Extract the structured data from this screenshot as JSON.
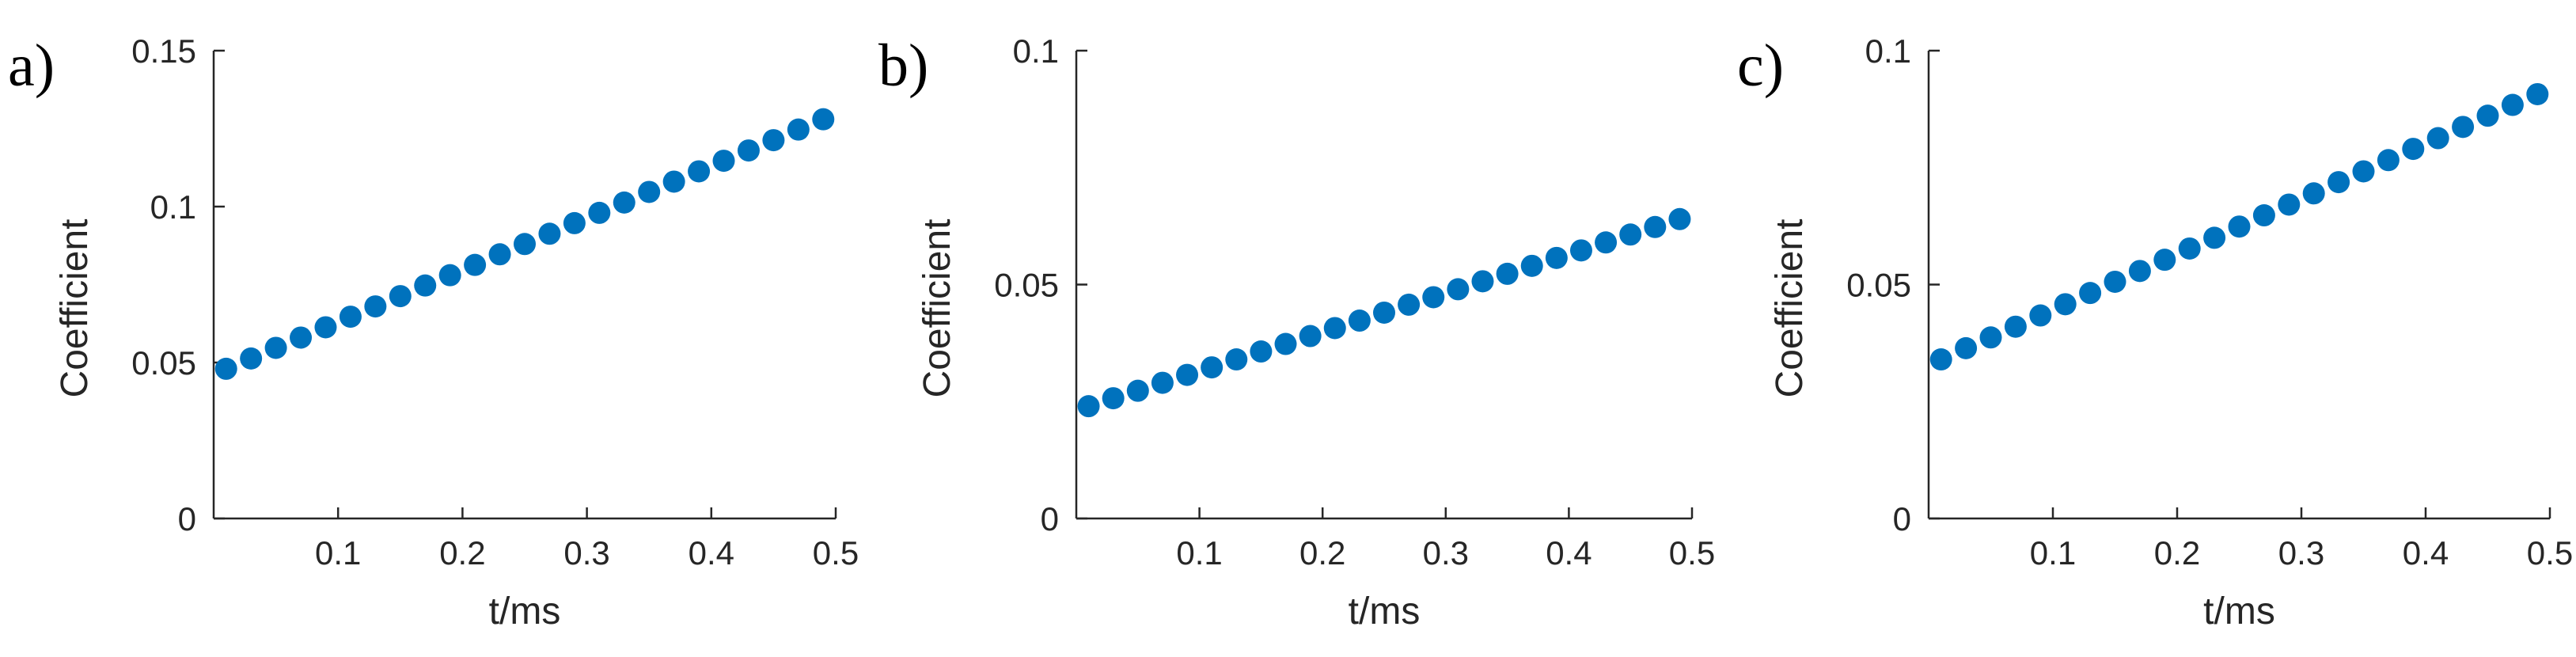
{
  "style": {
    "marker_color": "#0072BD",
    "axis_color": "#262626"
  },
  "chart_data": [
    {
      "type": "scatter",
      "panel_label": "a)",
      "xlabel": "t/ms",
      "ylabel": "Coefficient",
      "xlim": [
        0,
        0.5
      ],
      "ylim": [
        0,
        0.15
      ],
      "xticks": [
        0.1,
        0.2,
        0.3,
        0.4,
        0.5
      ],
      "xtick_labels": [
        "0.1",
        "0.2",
        "0.3",
        "0.4",
        "0.5"
      ],
      "yticks": [
        0,
        0.05,
        0.1,
        0.15
      ],
      "ytick_labels": [
        "0",
        "0.05",
        "0.1",
        "0.15"
      ],
      "grid": false,
      "series": [
        {
          "x": [
            0.01,
            0.03,
            0.05,
            0.07,
            0.09,
            0.11,
            0.13,
            0.15,
            0.17,
            0.19,
            0.21,
            0.23,
            0.25,
            0.27,
            0.29,
            0.31,
            0.33,
            0.35,
            0.37,
            0.39,
            0.41,
            0.43,
            0.45,
            0.47,
            0.49
          ],
          "y": [
            0.048,
            0.0513,
            0.0547,
            0.058,
            0.0613,
            0.0647,
            0.068,
            0.0713,
            0.0747,
            0.078,
            0.0813,
            0.0847,
            0.088,
            0.0913,
            0.0947,
            0.098,
            0.1013,
            0.1047,
            0.108,
            0.1113,
            0.1147,
            0.118,
            0.1213,
            0.1247,
            0.128
          ]
        }
      ]
    },
    {
      "type": "scatter",
      "panel_label": "b)",
      "xlabel": "t/ms",
      "ylabel": "Coefficient",
      "xlim": [
        0,
        0.5
      ],
      "ylim": [
        0,
        0.1
      ],
      "xticks": [
        0.1,
        0.2,
        0.3,
        0.4,
        0.5
      ],
      "xtick_labels": [
        "0.1",
        "0.2",
        "0.3",
        "0.4",
        "0.5"
      ],
      "yticks": [
        0,
        0.05,
        0.1
      ],
      "ytick_labels": [
        "0",
        "0.05",
        "0.1"
      ],
      "grid": false,
      "series": [
        {
          "x": [
            0.01,
            0.03,
            0.05,
            0.07,
            0.09,
            0.11,
            0.13,
            0.15,
            0.17,
            0.19,
            0.21,
            0.23,
            0.25,
            0.27,
            0.29,
            0.31,
            0.33,
            0.35,
            0.37,
            0.39,
            0.41,
            0.43,
            0.45,
            0.47,
            0.49
          ],
          "y": [
            0.024,
            0.0257,
            0.0273,
            0.029,
            0.0307,
            0.0323,
            0.034,
            0.0357,
            0.0373,
            0.039,
            0.0407,
            0.0423,
            0.044,
            0.0457,
            0.0473,
            0.049,
            0.0507,
            0.0523,
            0.054,
            0.0557,
            0.0573,
            0.059,
            0.0607,
            0.0623,
            0.064
          ]
        }
      ]
    },
    {
      "type": "scatter",
      "panel_label": "c)",
      "xlabel": "t/ms",
      "ylabel": "Coefficient",
      "xlim": [
        0,
        0.5
      ],
      "ylim": [
        0,
        0.1
      ],
      "xticks": [
        0.1,
        0.2,
        0.3,
        0.4,
        0.5
      ],
      "xtick_labels": [
        "0.1",
        "0.2",
        "0.3",
        "0.4",
        "0.5"
      ],
      "yticks": [
        0,
        0.05,
        0.1
      ],
      "ytick_labels": [
        "0",
        "0.05",
        "0.1"
      ],
      "grid": false,
      "series": [
        {
          "x": [
            0.01,
            0.03,
            0.05,
            0.07,
            0.09,
            0.11,
            0.13,
            0.15,
            0.17,
            0.19,
            0.21,
            0.23,
            0.25,
            0.27,
            0.29,
            0.31,
            0.33,
            0.35,
            0.37,
            0.39,
            0.41,
            0.43,
            0.45,
            0.47,
            0.49
          ],
          "y": [
            0.034,
            0.0364,
            0.0387,
            0.041,
            0.0434,
            0.0458,
            0.0482,
            0.0506,
            0.0529,
            0.0553,
            0.0577,
            0.06,
            0.0624,
            0.0648,
            0.0671,
            0.0695,
            0.0719,
            0.0742,
            0.0766,
            0.079,
            0.0813,
            0.0837,
            0.0861,
            0.0884,
            0.0907
          ]
        }
      ]
    }
  ]
}
